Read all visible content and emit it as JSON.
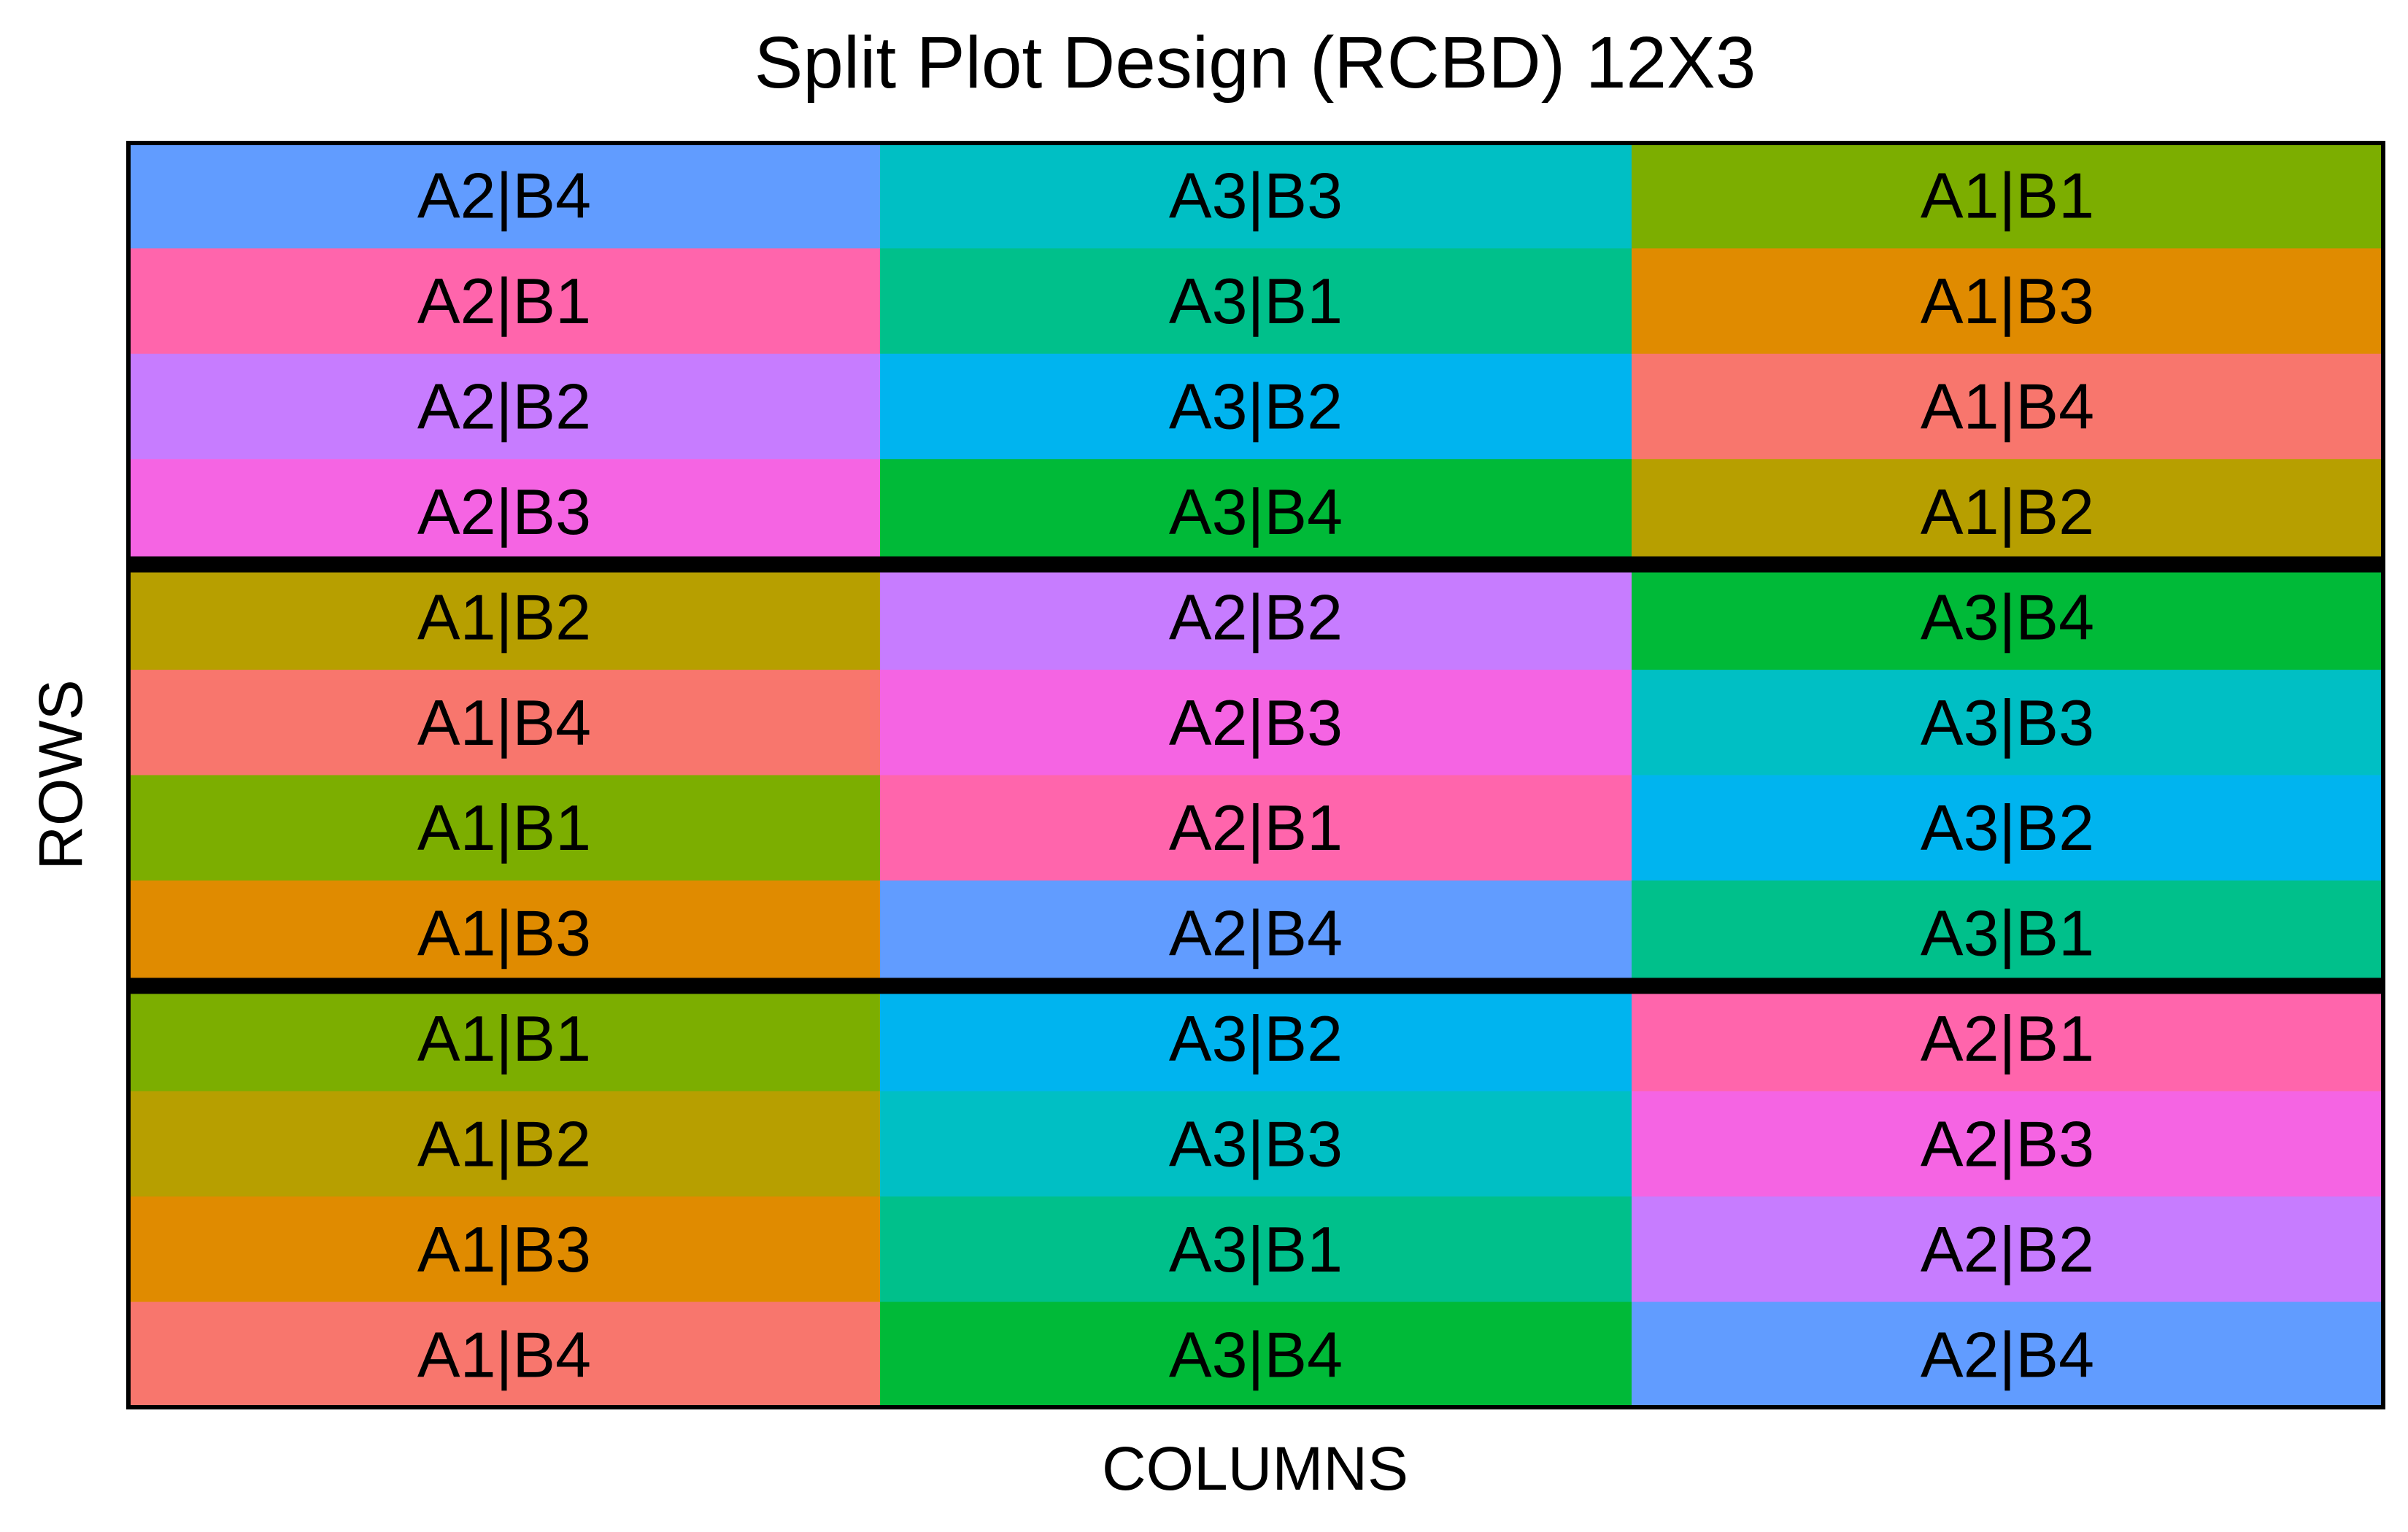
{
  "chart_data": {
    "type": "heatmap",
    "title": "Split Plot Design (RCBD) 12X3",
    "xlabel": "COLUMNS",
    "ylabel": "ROWS",
    "grid": false,
    "legend": "none",
    "n_rows": 12,
    "n_cols": 3,
    "block_size": 4,
    "cells": [
      [
        "A2|B4",
        "A3|B3",
        "A1|B1"
      ],
      [
        "A2|B1",
        "A3|B1",
        "A1|B3"
      ],
      [
        "A2|B2",
        "A3|B2",
        "A1|B4"
      ],
      [
        "A2|B3",
        "A3|B4",
        "A1|B2"
      ],
      [
        "A1|B2",
        "A2|B2",
        "A3|B4"
      ],
      [
        "A1|B4",
        "A2|B3",
        "A3|B3"
      ],
      [
        "A1|B1",
        "A2|B1",
        "A3|B2"
      ],
      [
        "A1|B3",
        "A2|B4",
        "A3|B1"
      ],
      [
        "A1|B1",
        "A3|B2",
        "A2|B1"
      ],
      [
        "A1|B2",
        "A3|B3",
        "A2|B3"
      ],
      [
        "A1|B3",
        "A3|B1",
        "A2|B2"
      ],
      [
        "A1|B4",
        "A3|B4",
        "A2|B4"
      ]
    ],
    "colors": {
      "A1|B1": "#7CAE00",
      "A1|B2": "#B79F00",
      "A1|B3": "#E08B00",
      "A1|B4": "#F8766D",
      "A2|B1": "#FF65AC",
      "A2|B2": "#C77CFF",
      "A2|B3": "#F564E3",
      "A2|B4": "#619CFF",
      "A3|B1": "#00C08B",
      "A3|B2": "#00B4EF",
      "A3|B3": "#00BFC4",
      "A3|B4": "#00BA38"
    }
  }
}
